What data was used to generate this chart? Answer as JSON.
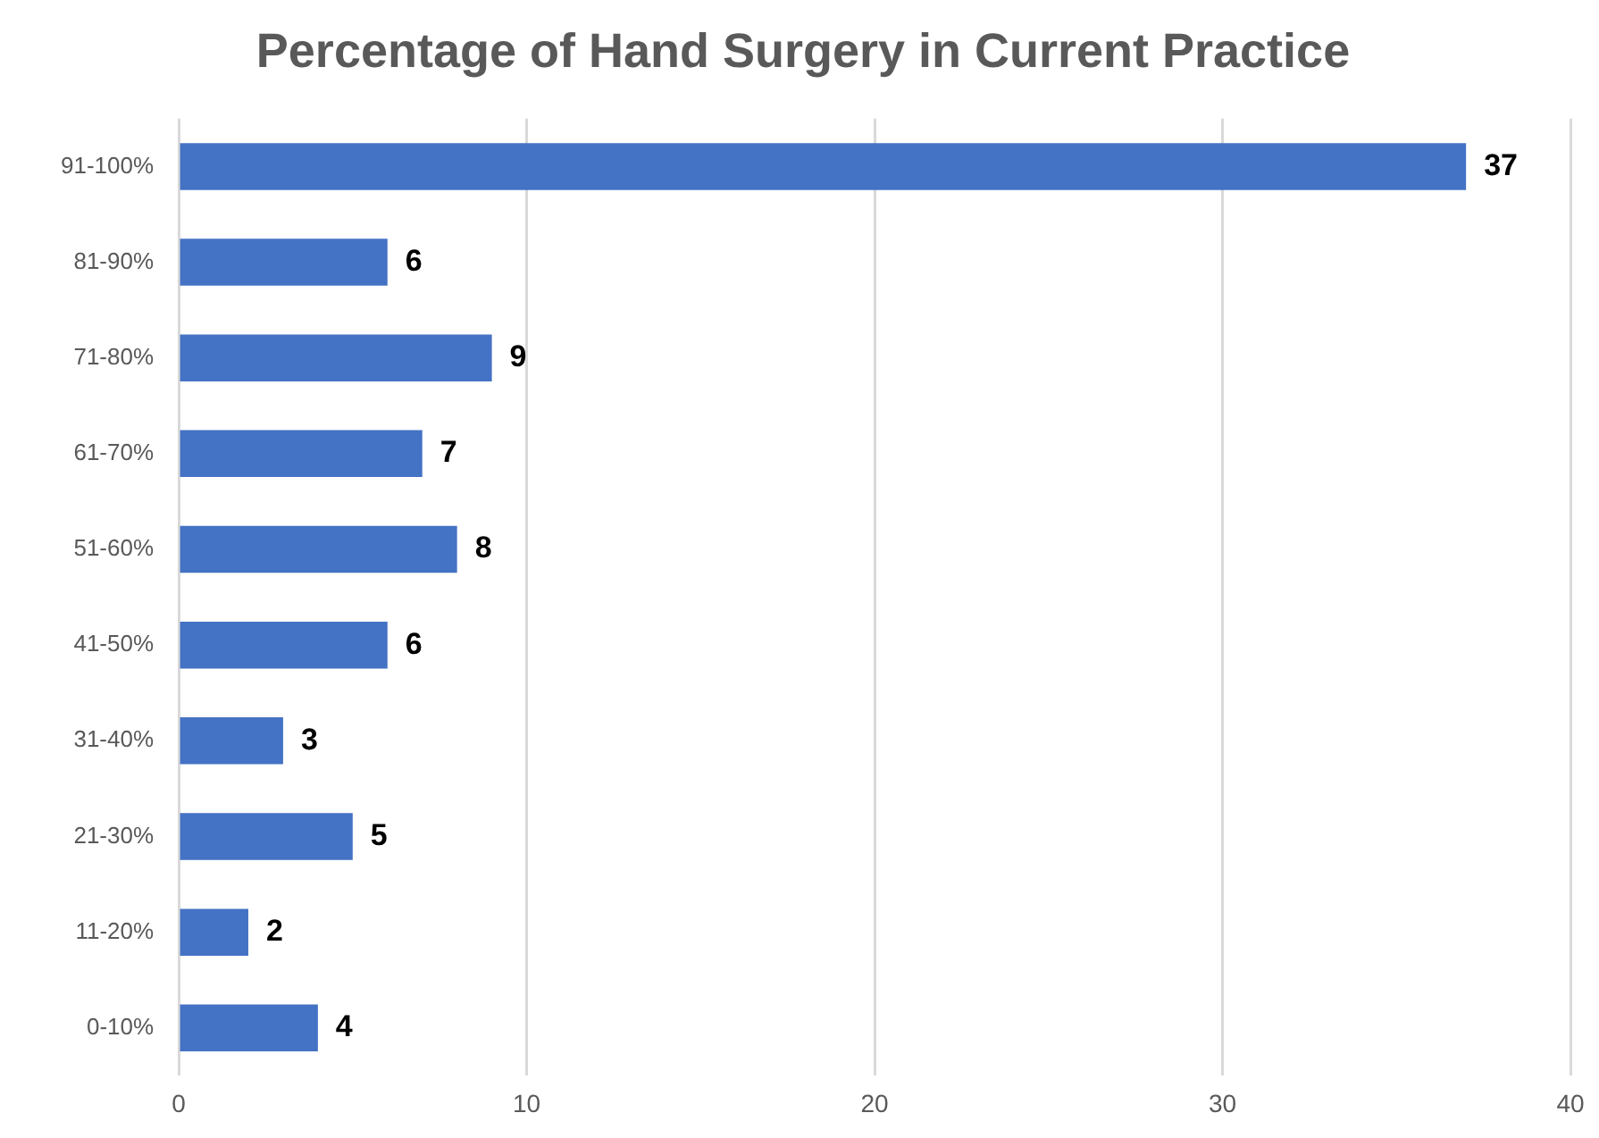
{
  "chart_data": {
    "type": "bar",
    "orientation": "horizontal",
    "title": "Percentage of Hand Surgery in Current Practice",
    "categories": [
      "91-100%",
      "81-90%",
      "71-80%",
      "61-70%",
      "51-60%",
      "41-50%",
      "31-40%",
      "21-30%",
      "11-20%",
      "0-10%"
    ],
    "values": [
      37,
      6,
      9,
      7,
      8,
      6,
      3,
      5,
      2,
      4
    ],
    "color": "#4472c4",
    "xlim": [
      0,
      40
    ],
    "xticks": [
      0,
      10,
      20,
      30,
      40
    ],
    "grid": "x",
    "data_labels": true
  }
}
